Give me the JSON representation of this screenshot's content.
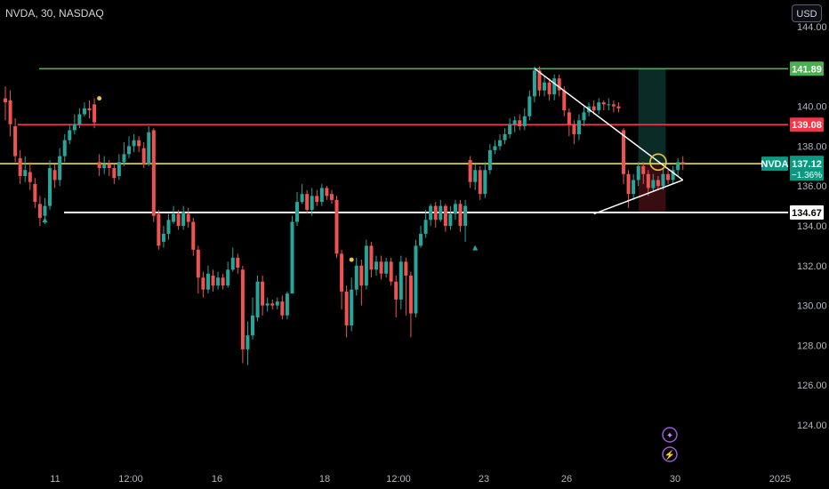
{
  "header": {
    "title": "NVDA, 30, NASDAQ",
    "currency_label": "USD"
  },
  "colors": {
    "up": "#26a69a",
    "down": "#ef5350",
    "green_line": "#4caf50",
    "red_line": "#f23645",
    "yellow_line": "#e8e13a",
    "white_line": "#ffffff",
    "price_tag": "#089981",
    "axis_text": "#b2b5be"
  },
  "chart_data": {
    "type": "candlestick",
    "symbol": "NVDA",
    "interval": "30",
    "exchange": "NASDAQ",
    "ylim": [
      122.5,
      145
    ],
    "y_ticks": [
      "124.00",
      "126.00",
      "128.00",
      "130.00",
      "132.00",
      "134.00",
      "136.00",
      "138.00",
      "140.00",
      "144.00"
    ],
    "x_ticks": [
      "11",
      "12:00",
      "16",
      "18",
      "12:00",
      "23",
      "26",
      "30",
      "2025"
    ],
    "levels": [
      {
        "price": 141.89,
        "label": "141.89",
        "color": "#4caf50"
      },
      {
        "price": 139.08,
        "label": "139.08",
        "color": "#f23645"
      },
      {
        "price": 137.12,
        "label": "",
        "color": "#e8e13a"
      },
      {
        "price": 134.67,
        "label": "134.67",
        "color": "#ffffff"
      }
    ],
    "last_price": {
      "symbol": "NVDA",
      "price": "137.12",
      "change": "−1.36%"
    },
    "candles": [
      [
        140.4,
        140.2,
        141.0,
        139.3
      ],
      [
        140.3,
        139.1,
        140.8,
        138.5
      ],
      [
        139.0,
        137.5,
        139.4,
        137.2
      ],
      [
        137.4,
        136.5,
        137.8,
        136.1
      ],
      [
        136.5,
        136.8,
        137.5,
        136.2
      ],
      [
        136.7,
        136.2,
        137.2,
        135.8
      ],
      [
        136.1,
        135.2,
        136.4,
        134.9
      ],
      [
        135.1,
        134.4,
        135.5,
        134.0
      ],
      [
        134.5,
        135.0,
        135.4,
        134.1
      ],
      [
        135.0,
        136.9,
        137.3,
        134.8
      ],
      [
        136.8,
        136.3,
        137.1,
        135.9
      ],
      [
        136.3,
        137.5,
        137.9,
        136.0
      ],
      [
        137.5,
        138.3,
        138.6,
        137.2
      ],
      [
        138.3,
        138.8,
        139.1,
        138.1
      ],
      [
        138.8,
        139.1,
        139.6,
        138.6
      ],
      [
        139.1,
        139.6,
        139.9,
        138.9
      ],
      [
        139.6,
        139.9,
        140.2,
        139.5
      ],
      [
        139.9,
        139.8,
        140.3,
        139.4
      ],
      [
        140.1,
        139.2,
        140.4,
        138.9
      ],
      [
        137.2,
        136.9,
        137.6,
        136.5
      ],
      [
        136.9,
        137.1,
        137.5,
        136.6
      ],
      [
        137.1,
        136.9,
        137.3,
        136.5
      ],
      [
        136.9,
        136.4,
        137.1,
        136.1
      ],
      [
        136.5,
        137.2,
        137.6,
        136.3
      ],
      [
        137.2,
        137.6,
        138.2,
        137.0
      ],
      [
        137.6,
        138.0,
        138.5,
        137.4
      ],
      [
        138.0,
        138.3,
        138.6,
        137.7
      ],
      [
        138.3,
        138.0,
        138.5,
        137.7
      ],
      [
        137.9,
        137.1,
        138.2,
        136.9
      ],
      [
        137.1,
        138.7,
        139.0,
        137.0
      ],
      [
        138.8,
        134.5,
        138.9,
        134.2
      ],
      [
        134.6,
        133.0,
        134.8,
        132.8
      ],
      [
        133.2,
        133.6,
        134.0,
        132.9
      ],
      [
        133.6,
        134.3,
        134.6,
        133.3
      ],
      [
        134.2,
        134.6,
        135.0,
        134.1
      ],
      [
        134.6,
        134.0,
        134.8,
        133.8
      ],
      [
        134.0,
        134.7,
        135.0,
        133.8
      ],
      [
        134.6,
        134.2,
        134.9,
        133.9
      ],
      [
        134.2,
        132.8,
        134.4,
        132.5
      ],
      [
        132.8,
        131.4,
        133.0,
        130.6
      ],
      [
        131.4,
        130.8,
        131.7,
        130.4
      ],
      [
        130.8,
        131.6,
        132.0,
        130.6
      ],
      [
        131.5,
        131.0,
        131.8,
        130.7
      ],
      [
        131.0,
        131.4,
        131.7,
        130.8
      ],
      [
        131.4,
        131.0,
        131.6,
        130.8
      ],
      [
        131.0,
        131.8,
        132.2,
        130.9
      ],
      [
        131.8,
        132.4,
        132.9,
        131.7
      ],
      [
        132.4,
        131.9,
        132.6,
        131.6
      ],
      [
        131.8,
        127.8,
        132.0,
        127.1
      ],
      [
        127.8,
        128.5,
        129.2,
        127.0
      ],
      [
        128.5,
        129.5,
        130.4,
        128.3
      ],
      [
        129.4,
        131.2,
        131.5,
        129.2
      ],
      [
        131.2,
        130.0,
        131.5,
        129.5
      ],
      [
        130.0,
        130.1,
        130.4,
        129.7
      ],
      [
        130.1,
        130.0,
        130.3,
        129.8
      ],
      [
        130.0,
        130.2,
        130.4,
        129.8
      ],
      [
        130.2,
        129.5,
        130.5,
        129.3
      ],
      [
        129.5,
        130.6,
        130.7,
        129.3
      ],
      [
        130.6,
        134.2,
        134.5,
        130.6
      ],
      [
        134.2,
        135.2,
        135.7,
        134.0
      ],
      [
        135.2,
        135.6,
        136.1,
        135.1
      ],
      [
        135.6,
        134.8,
        135.8,
        134.6
      ],
      [
        134.8,
        135.5,
        135.9,
        134.5
      ],
      [
        135.5,
        135.2,
        135.8,
        135.0
      ],
      [
        135.2,
        135.9,
        136.1,
        135.0
      ],
      [
        135.9,
        135.5,
        136.0,
        135.3
      ],
      [
        135.6,
        135.3,
        135.8,
        135.1
      ],
      [
        135.3,
        132.6,
        135.5,
        132.4
      ],
      [
        132.6,
        130.7,
        132.8,
        129.8
      ],
      [
        130.7,
        129.0,
        131.0,
        128.4
      ],
      [
        129.0,
        130.8,
        131.4,
        128.7
      ],
      [
        130.8,
        132.0,
        132.4,
        130.5
      ],
      [
        132.0,
        131.0,
        132.3,
        130.0
      ],
      [
        131.0,
        133.0,
        133.3,
        130.8
      ],
      [
        133.0,
        131.8,
        133.2,
        131.4
      ],
      [
        131.8,
        132.2,
        132.5,
        131.5
      ],
      [
        132.2,
        131.6,
        132.5,
        131.3
      ],
      [
        131.6,
        132.2,
        132.4,
        131.4
      ],
      [
        132.2,
        131.2,
        132.4,
        131.0
      ],
      [
        131.2,
        130.3,
        131.5,
        129.4
      ],
      [
        130.3,
        132.2,
        132.5,
        129.8
      ],
      [
        132.2,
        131.5,
        132.4,
        129.5
      ],
      [
        131.5,
        129.6,
        131.7,
        128.4
      ],
      [
        129.6,
        133.0,
        133.3,
        129.4
      ],
      [
        133.0,
        133.6,
        134.0,
        132.9
      ],
      [
        133.6,
        134.3,
        134.8,
        133.4
      ],
      [
        134.3,
        135.0,
        135.1,
        134.0
      ],
      [
        135.0,
        134.3,
        135.2,
        133.9
      ],
      [
        134.3,
        135.0,
        135.3,
        134.2
      ],
      [
        135.0,
        134.0,
        135.1,
        133.7
      ],
      [
        134.0,
        134.6,
        135.0,
        133.8
      ],
      [
        134.6,
        135.1,
        135.3,
        134.3
      ],
      [
        135.1,
        134.0,
        135.3,
        133.7
      ],
      [
        134.0,
        135.0,
        135.3,
        133.2
      ],
      [
        137.3,
        136.2,
        137.5,
        135.9
      ],
      [
        136.2,
        136.8,
        137.1,
        135.8
      ],
      [
        136.8,
        135.6,
        137.0,
        135.3
      ],
      [
        135.6,
        136.8,
        137.2,
        135.4
      ],
      [
        136.8,
        137.8,
        138.1,
        136.6
      ],
      [
        137.8,
        138.0,
        138.3,
        137.6
      ],
      [
        138.0,
        138.3,
        138.6,
        137.8
      ],
      [
        138.3,
        138.6,
        138.9,
        138.1
      ],
      [
        138.6,
        139.1,
        139.4,
        138.4
      ],
      [
        139.1,
        139.3,
        139.5,
        138.7
      ],
      [
        139.3,
        139.0,
        139.6,
        138.8
      ],
      [
        139.0,
        139.5,
        139.9,
        138.8
      ],
      [
        139.5,
        140.5,
        140.8,
        139.3
      ],
      [
        140.5,
        141.8,
        142.0,
        140.2
      ],
      [
        141.8,
        140.8,
        142.0,
        140.5
      ],
      [
        140.8,
        141.2,
        141.5,
        140.5
      ],
      [
        141.2,
        140.6,
        141.4,
        140.3
      ],
      [
        140.6,
        141.4,
        141.6,
        140.3
      ],
      [
        141.4,
        140.8,
        141.6,
        140.5
      ],
      [
        140.8,
        139.8,
        141.0,
        139.5
      ],
      [
        139.7,
        139.1,
        139.9,
        138.5
      ],
      [
        139.1,
        138.6,
        139.3,
        138.1
      ],
      [
        138.6,
        139.3,
        139.6,
        138.3
      ],
      [
        139.3,
        139.7,
        140.0,
        139.0
      ],
      [
        139.7,
        140.0,
        140.2,
        139.5
      ],
      [
        140.0,
        139.8,
        140.3,
        139.6
      ],
      [
        139.8,
        140.2,
        140.4,
        139.6
      ],
      [
        140.2,
        140.1,
        140.3,
        139.8
      ],
      [
        140.1,
        140.1,
        140.4,
        139.8
      ],
      [
        140.1,
        140.0,
        140.3,
        139.7
      ],
      [
        140.0,
        139.9,
        140.2,
        139.7
      ],
      [
        138.8,
        136.6,
        138.9,
        136.1
      ],
      [
        136.6,
        135.6,
        136.8,
        134.9
      ],
      [
        135.6,
        136.3,
        136.6,
        135.3
      ],
      [
        136.3,
        137.0,
        137.2,
        136.0
      ],
      [
        137.0,
        136.6,
        137.2,
        136.1
      ],
      [
        136.6,
        135.9,
        136.8,
        135.5
      ],
      [
        135.9,
        136.3,
        136.6,
        135.7
      ],
      [
        136.3,
        136.0,
        136.5,
        135.8
      ],
      [
        136.0,
        136.6,
        136.9,
        135.8
      ],
      [
        136.6,
        136.3,
        136.8,
        136.1
      ],
      [
        136.3,
        136.8,
        137.0,
        136.1
      ],
      [
        136.8,
        137.2,
        137.4,
        136.5
      ],
      [
        137.2,
        137.1,
        137.5,
        136.8
      ]
    ],
    "annotations": [
      {
        "type": "trendline",
        "color": "#ffffff",
        "points": [
          [
            107,
            141.9
          ],
          [
            137,
            136.3
          ]
        ]
      },
      {
        "type": "trendline",
        "color": "#ffffff",
        "points": [
          [
            119,
            134.6
          ],
          [
            137,
            136.3
          ]
        ]
      },
      {
        "type": "long_position",
        "entry": 137.12,
        "target": 141.89,
        "stop": 134.67,
        "from_index": 128,
        "to_index": 133
      },
      {
        "type": "circle_marker",
        "color": "#e8c547",
        "index": 132,
        "price": 137.2
      }
    ],
    "markers": [
      {
        "index": 19,
        "price": 140.4,
        "color": "#e8c547"
      },
      {
        "index": 70,
        "price": 132.3,
        "color": "#e8c547"
      },
      {
        "index": 8,
        "price": 134.3,
        "color": "#26a69a"
      },
      {
        "index": 95,
        "price": 132.9,
        "color": "#26a69a"
      }
    ]
  }
}
